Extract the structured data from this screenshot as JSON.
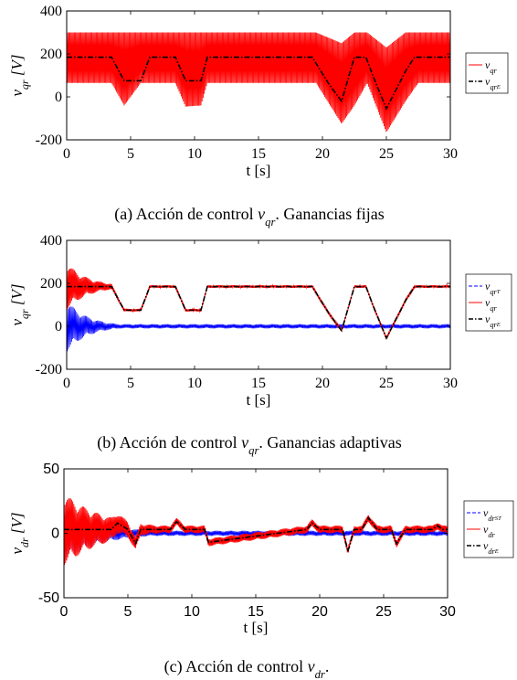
{
  "chart_data": [
    {
      "type": "line",
      "caption": "(a) Acción de control v_{qr}. Ganancias fijas",
      "xlabel": "t [s]",
      "ylabel": "v_{qr} [V]",
      "xlim": [
        0,
        30
      ],
      "ylim": [
        -200,
        400
      ],
      "xticks": [
        "0",
        "5",
        "10",
        "15",
        "20",
        "25",
        "30"
      ],
      "yticks": [
        "400",
        "200",
        "0",
        "-200"
      ],
      "legend_position": "right",
      "series": [
        {
          "name": "v_{qr}",
          "color": "#ff0000",
          "style": "solid",
          "oscillating": true,
          "upper_x": [
            0,
            3.5,
            4.5,
            5.8,
            6.5,
            8.5,
            9.3,
            10.5,
            11.0,
            19.5,
            21.5,
            22.5,
            23.5,
            25,
            26.5,
            27.5,
            30
          ],
          "upper_y": [
            300,
            300,
            300,
            300,
            300,
            300,
            300,
            300,
            300,
            300,
            250,
            300,
            300,
            230,
            300,
            300,
            300
          ],
          "lower_x": [
            0,
            3.5,
            4.5,
            5.8,
            6.5,
            8.5,
            9.3,
            10.5,
            11.0,
            19.5,
            21.5,
            22.5,
            23.5,
            25,
            26.5,
            27.5,
            30
          ],
          "lower_y": [
            65,
            65,
            -40,
            65,
            65,
            65,
            -45,
            -40,
            65,
            65,
            -125,
            -40,
            65,
            -165,
            -20,
            65,
            65
          ]
        },
        {
          "name": "v_{qr_E}",
          "color": "#000000",
          "style": "dashdot",
          "x": [
            0,
            3.5,
            4.5,
            5.8,
            6.5,
            8.5,
            9.3,
            10.5,
            11.0,
            19.2,
            20.5,
            21.5,
            22.5,
            23.4,
            24,
            25,
            26.5,
            27.2,
            30
          ],
          "y": [
            185,
            185,
            75,
            75,
            185,
            185,
            75,
            75,
            185,
            185,
            60,
            -20,
            185,
            185,
            90,
            -55,
            120,
            185,
            185
          ]
        }
      ]
    },
    {
      "type": "line",
      "caption": "(b) Acción de control v_{qr}. Ganancias adaptivas",
      "xlabel": "t [s]",
      "ylabel": "v_{qr} [V]",
      "xlim": [
        0,
        30
      ],
      "ylim": [
        -200,
        400
      ],
      "xticks": [
        "0",
        "5",
        "10",
        "15",
        "20",
        "25",
        "30"
      ],
      "yticks": [
        "400",
        "200",
        "0",
        "-200"
      ],
      "legend_position": "right",
      "series": [
        {
          "name": "v_{qr_T}",
          "color": "#0000ff",
          "style": "dashed",
          "oscillating": true,
          "center": 0,
          "amp_start": 120,
          "amp_decay": 0.6,
          "amp_floor": 10
        },
        {
          "name": "v_{qr}",
          "color": "#ff0000",
          "style": "solid",
          "oscillating": true,
          "follows": "v_{qr_E}",
          "amp_start": 110,
          "amp_decay": 0.6,
          "amp_floor": 6
        },
        {
          "name": "v_{qr_E}",
          "color": "#000000",
          "style": "dashdot",
          "x": [
            0,
            3.5,
            4.5,
            5.8,
            6.5,
            8.5,
            9.3,
            10.5,
            11.0,
            19.2,
            20.5,
            21.5,
            22.5,
            23.4,
            24,
            25,
            26.5,
            27.2,
            30
          ],
          "y": [
            185,
            185,
            75,
            75,
            185,
            185,
            75,
            75,
            185,
            185,
            60,
            -20,
            185,
            185,
            90,
            -55,
            120,
            185,
            185
          ]
        }
      ]
    },
    {
      "type": "line",
      "caption": "(c) Acción de control v_{dr}.",
      "xlabel": "t [s]",
      "ylabel": "v_{dr} [V]",
      "xlim": [
        0,
        30
      ],
      "ylim": [
        -50,
        50
      ],
      "xticks": [
        "0",
        "5",
        "10",
        "15",
        "20",
        "25",
        "30"
      ],
      "yticks": [
        "50",
        "0",
        "-50"
      ],
      "legend_position": "right",
      "series": [
        {
          "name": "v_{dr_{ST}}",
          "color": "#0000ff",
          "style": "dashed",
          "oscillating": true,
          "center": 0,
          "amp_start": 22,
          "amp_decay": 0.35,
          "amp_floor": 2
        },
        {
          "name": "v_{dr}",
          "color": "#ff0000",
          "style": "solid",
          "oscillating": true,
          "follows": "v_{dr_E}",
          "amp_start": 28,
          "amp_decay": 0.3,
          "amp_floor": 3
        },
        {
          "name": "v_{dr_E}",
          "color": "#000000",
          "style": "dashdot",
          "x": [
            0,
            3.7,
            4.2,
            5.0,
            5.6,
            6.0,
            8.3,
            8.8,
            9.5,
            11.0,
            11.3,
            19.0,
            19.4,
            20.0,
            21.8,
            22.2,
            22.7,
            23.3,
            23.8,
            24.5,
            25.6,
            26.0,
            26.7,
            28.8,
            29.2,
            29.6,
            30
          ],
          "y": [
            3,
            3,
            8,
            3,
            -8,
            3,
            3,
            9,
            3,
            3,
            -7,
            3,
            8,
            3,
            3,
            -14,
            3,
            3,
            12,
            3,
            3,
            -8,
            3,
            3,
            6,
            3,
            3
          ]
        }
      ]
    }
  ]
}
